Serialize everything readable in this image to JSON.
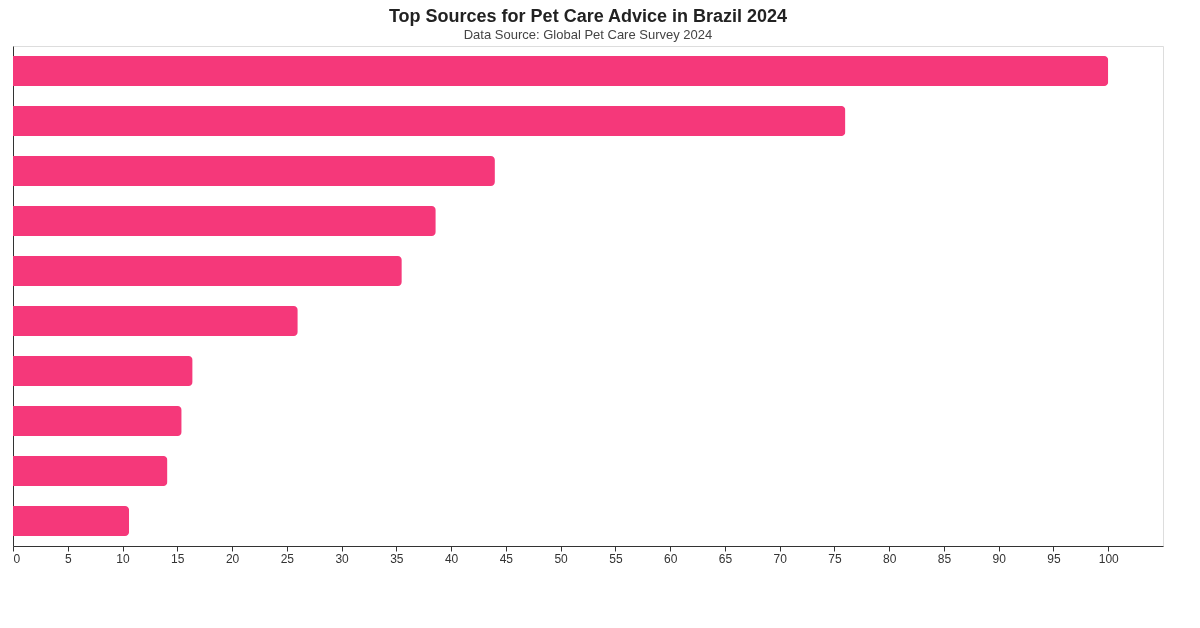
{
  "chart_data": {
    "type": "bar",
    "orientation": "horizontal",
    "title": "Top Sources for Pet Care Advice in Brazil 2024",
    "subtitle": "Data Source: Global Pet Care Survey 2024",
    "categories": [
      null,
      null,
      null,
      null,
      null,
      null,
      null,
      null,
      null,
      null
    ],
    "values": [
      100,
      76,
      44,
      38.6,
      35.5,
      26,
      16.4,
      15.4,
      14.1,
      10.6
    ],
    "color": "#f5387a",
    "xlim": [
      0,
      105
    ],
    "xticks": [
      0,
      5,
      10,
      15,
      20,
      25,
      30,
      35,
      40,
      45,
      50,
      55,
      60,
      65,
      70,
      75,
      80,
      85,
      90,
      95,
      100
    ],
    "grid": false,
    "tick_labels": "x"
  }
}
